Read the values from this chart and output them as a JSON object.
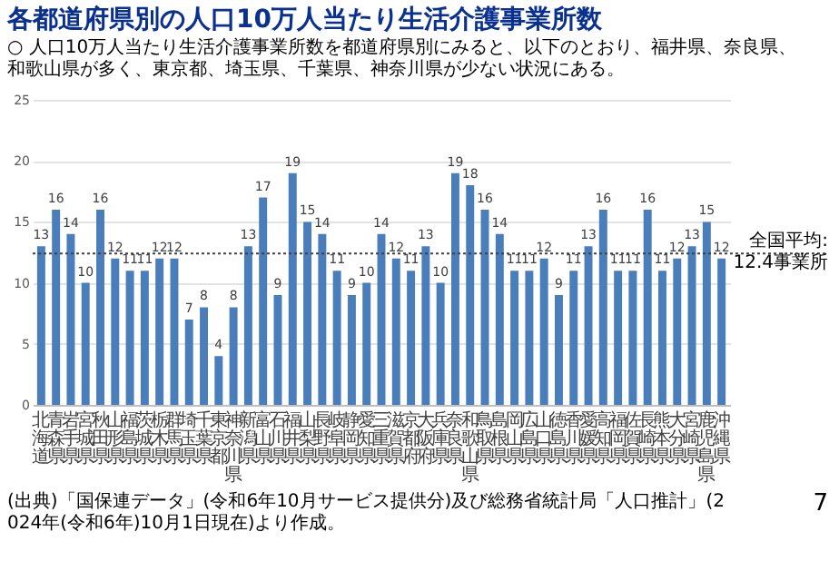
{
  "chart_data": {
    "type": "bar",
    "title": "各都道府県別の人口10万人当たり生活介護事業所数",
    "subtitle": "○ 人口10万人当たり生活介護事業所数を都道府県別にみると、以下のとおり、福井県、奈良県、和歌山県が多く、東京都、埼玉県、千葉県、神奈川県が少ない状況にある。",
    "categories": [
      "北海道",
      "青森県",
      "岩手県",
      "宮城県",
      "秋田県",
      "山形県",
      "福島県",
      "茨城県",
      "栃木県",
      "群馬県",
      "埼玉県",
      "千葉県",
      "東京都",
      "神奈川県",
      "新潟県",
      "富山県",
      "石川県",
      "福井県",
      "山梨県",
      "長野県",
      "岐阜県",
      "静岡県",
      "愛知県",
      "三重県",
      "滋賀県",
      "京都府",
      "大阪府",
      "兵庫県",
      "奈良県",
      "和歌山県",
      "鳥取県",
      "島根県",
      "岡山県",
      "広島県",
      "山口県",
      "徳島県",
      "香川県",
      "愛媛県",
      "高知県",
      "福岡県",
      "佐賀県",
      "長崎県",
      "熊本県",
      "大分県",
      "宮崎県",
      "鹿児島県",
      "沖縄県"
    ],
    "values": [
      13,
      16,
      14,
      10,
      16,
      12,
      11,
      11,
      12,
      12,
      7,
      8,
      4,
      8,
      13,
      17,
      9,
      19,
      15,
      14,
      11,
      9,
      10,
      14,
      12,
      11,
      13,
      10,
      19,
      18,
      16,
      14,
      11,
      11,
      12,
      9,
      11,
      13,
      16,
      11,
      11,
      16,
      11,
      12,
      13,
      15,
      12
    ],
    "color": "#4a7ebb",
    "data_labels": true,
    "ylim": [
      0,
      25
    ],
    "yticks": [
      0,
      5,
      10,
      15,
      20,
      25
    ],
    "grid": "y",
    "ref_lines": [
      {
        "axis": "y",
        "value": 12.4,
        "label": "全国平均:\n12.4事業所",
        "color": "#404040",
        "line_style": "dotted"
      }
    ],
    "annotations": [
      "(出典)「国保連データ」(令和6年10月サービス提供分)及び総務省統計局「人口推計」(2024年(令和6年)10月1日現在)より作成。",
      "7"
    ]
  }
}
